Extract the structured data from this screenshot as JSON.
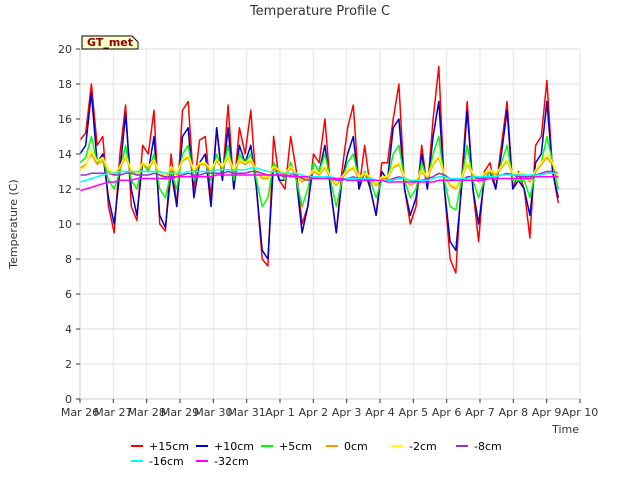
{
  "chart_data": {
    "type": "line",
    "title": "Temperature Profile C",
    "xlabel": "Time",
    "ylabel": "Temperature (C)",
    "xlim": [
      "2024-03-26",
      "2024-04-10"
    ],
    "ylim": [
      0,
      20
    ],
    "yticks": [
      0,
      2,
      4,
      6,
      8,
      10,
      12,
      14,
      16,
      18,
      20
    ],
    "xticks": [
      "Mar 26",
      "Mar 27",
      "Mar 28",
      "Mar 29",
      "Mar 30",
      "Mar 31",
      "Apr 1",
      "Apr 2",
      "Apr 3",
      "Apr 4",
      "Apr 5",
      "Apr 6",
      "Apr 7",
      "Apr 8",
      "Apr 9",
      "Apr 10"
    ],
    "grid": true,
    "legend_placement": "bottom",
    "badge": "GT_met",
    "series": [
      {
        "name": "+15cm",
        "color": "#ff0000",
        "y": [
          14.8,
          15.2,
          18.0,
          14.5,
          15.0,
          11.0,
          9.5,
          14.0,
          16.8,
          11.0,
          10.2,
          14.5,
          14.0,
          16.5,
          10.0,
          9.6,
          14.0,
          11.0,
          16.5,
          17.0,
          12.0,
          14.8,
          15.0,
          11.5,
          15.5,
          12.5,
          16.8,
          12.0,
          15.5,
          14.0,
          16.5,
          12.0,
          8.0,
          7.6,
          15.0,
          12.5,
          12.0,
          15.0,
          13.0,
          10.0,
          11.0,
          14.0,
          13.5,
          16.0,
          12.0,
          9.5,
          13.0,
          15.5,
          16.8,
          12.0,
          14.5,
          12.0,
          10.5,
          13.5,
          13.5,
          16.0,
          18.0,
          12.0,
          10.0,
          11.0,
          14.5,
          12.0,
          16.0,
          19.0,
          12.0,
          8.0,
          7.2,
          12.5,
          17.0,
          12.0,
          9.0,
          13.0,
          13.5,
          12.0,
          14.5,
          17.0,
          12.0,
          13.0,
          12.0,
          9.2,
          14.5,
          15.0,
          18.2,
          13.0,
          11.2
        ]
      },
      {
        "name": "+10cm",
        "color": "#0000cc",
        "y": [
          14.0,
          14.5,
          17.5,
          13.5,
          14.0,
          11.5,
          10.0,
          13.0,
          16.3,
          12.0,
          10.5,
          13.5,
          13.0,
          15.0,
          10.5,
          9.8,
          13.0,
          11.0,
          15.0,
          15.5,
          11.5,
          13.5,
          14.0,
          11.0,
          15.5,
          12.5,
          15.5,
          12.0,
          14.5,
          13.5,
          14.5,
          12.0,
          8.5,
          8.0,
          13.5,
          12.5,
          12.5,
          13.5,
          12.5,
          9.5,
          11.0,
          13.5,
          13.0,
          14.5,
          12.0,
          9.5,
          12.5,
          14.0,
          15.0,
          12.0,
          13.0,
          12.0,
          10.5,
          13.0,
          12.5,
          15.5,
          16.0,
          12.0,
          10.5,
          11.5,
          14.0,
          12.0,
          15.0,
          17.0,
          12.0,
          9.0,
          8.5,
          12.0,
          16.5,
          12.0,
          10.0,
          12.5,
          13.0,
          12.0,
          14.0,
          16.5,
          12.0,
          12.5,
          12.0,
          10.5,
          13.5,
          14.0,
          17.0,
          13.0,
          11.5
        ]
      },
      {
        "name": "+5cm",
        "color": "#00ff00",
        "y": [
          13.5,
          13.8,
          15.0,
          13.5,
          13.8,
          12.5,
          12.0,
          13.0,
          14.5,
          12.5,
          12.0,
          13.5,
          13.0,
          14.0,
          12.0,
          11.5,
          13.0,
          12.0,
          14.0,
          14.5,
          12.5,
          13.5,
          13.5,
          12.5,
          14.0,
          13.0,
          14.5,
          12.5,
          14.0,
          13.5,
          14.0,
          12.5,
          11.0,
          11.5,
          13.5,
          13.0,
          12.5,
          13.5,
          12.5,
          11.0,
          12.0,
          13.5,
          13.0,
          14.0,
          12.5,
          11.0,
          12.5,
          13.5,
          14.0,
          12.5,
          13.0,
          12.5,
          11.5,
          12.5,
          12.5,
          14.0,
          14.5,
          12.5,
          11.5,
          12.0,
          13.5,
          12.5,
          14.0,
          15.0,
          12.5,
          11.0,
          10.8,
          12.5,
          14.5,
          12.5,
          11.5,
          12.5,
          13.0,
          12.5,
          13.5,
          14.5,
          12.5,
          12.5,
          12.5,
          11.5,
          13.0,
          13.5,
          15.0,
          13.5,
          12.0
        ]
      },
      {
        "name": "0cm",
        "color": "#ff9900",
        "y": [
          13.2,
          13.4,
          14.0,
          13.4,
          13.6,
          13.0,
          12.8,
          13.2,
          13.8,
          13.0,
          12.8,
          13.4,
          13.2,
          13.6,
          12.8,
          12.6,
          13.2,
          12.8,
          13.6,
          13.8,
          13.0,
          13.4,
          13.4,
          13.0,
          13.6,
          13.2,
          13.8,
          13.0,
          13.6,
          13.4,
          13.6,
          13.0,
          12.6,
          12.6,
          13.2,
          13.0,
          12.8,
          13.2,
          12.8,
          12.4,
          12.6,
          13.0,
          12.8,
          13.2,
          12.6,
          12.2,
          12.6,
          13.0,
          13.2,
          12.6,
          12.8,
          12.6,
          12.2,
          12.6,
          12.6,
          13.2,
          13.4,
          12.6,
          12.2,
          12.4,
          13.0,
          12.6,
          13.4,
          13.8,
          12.8,
          12.2,
          12.0,
          12.6,
          13.4,
          12.8,
          12.4,
          12.8,
          13.0,
          12.8,
          13.2,
          13.6,
          12.8,
          12.8,
          12.8,
          12.4,
          13.0,
          13.4,
          13.8,
          13.4,
          12.6
        ]
      },
      {
        "name": "-2cm",
        "color": "#ffff00",
        "y": [
          13.1,
          13.3,
          14.2,
          13.6,
          13.8,
          13.1,
          12.9,
          13.3,
          13.9,
          13.1,
          12.9,
          13.5,
          13.3,
          13.7,
          12.9,
          12.7,
          13.3,
          12.9,
          13.7,
          13.9,
          13.1,
          13.5,
          13.5,
          13.1,
          13.7,
          13.3,
          13.9,
          13.1,
          13.7,
          13.5,
          13.7,
          13.1,
          12.7,
          12.7,
          13.3,
          13.1,
          12.9,
          13.3,
          12.9,
          12.5,
          12.7,
          13.1,
          12.9,
          13.3,
          12.7,
          12.3,
          12.7,
          13.1,
          13.3,
          12.7,
          12.9,
          12.7,
          12.3,
          12.7,
          12.7,
          13.3,
          13.5,
          12.7,
          12.3,
          12.5,
          13.1,
          12.7,
          13.5,
          13.9,
          12.9,
          12.3,
          12.1,
          12.7,
          13.5,
          12.9,
          12.5,
          12.9,
          13.1,
          12.9,
          13.3,
          13.7,
          12.9,
          12.9,
          12.9,
          12.5,
          13.1,
          13.5,
          14.0,
          13.5,
          12.7
        ]
      },
      {
        "name": "-8cm",
        "color": "#9933cc",
        "y": [
          12.8,
          12.8,
          12.9,
          12.9,
          12.9,
          12.9,
          12.8,
          12.8,
          12.9,
          12.9,
          12.8,
          12.8,
          12.8,
          12.9,
          12.8,
          12.7,
          12.7,
          12.7,
          12.8,
          12.9,
          12.8,
          12.8,
          12.9,
          12.9,
          12.9,
          12.9,
          13.0,
          12.9,
          12.9,
          12.9,
          13.0,
          13.0,
          12.9,
          12.8,
          12.8,
          12.8,
          12.7,
          12.8,
          12.8,
          12.6,
          12.5,
          12.6,
          12.7,
          12.7,
          12.6,
          12.5,
          12.5,
          12.6,
          12.7,
          12.6,
          12.6,
          12.6,
          12.5,
          12.5,
          12.5,
          12.6,
          12.7,
          12.6,
          12.5,
          12.4,
          12.5,
          12.6,
          12.7,
          12.9,
          12.8,
          12.6,
          12.5,
          12.5,
          12.7,
          12.7,
          12.6,
          12.6,
          12.7,
          12.7,
          12.8,
          12.9,
          12.8,
          12.7,
          12.7,
          12.7,
          12.8,
          12.9,
          13.0,
          13.0,
          12.9
        ]
      },
      {
        "name": "-16cm",
        "color": "#00ffff",
        "y": [
          12.4,
          12.5,
          12.6,
          12.7,
          12.8,
          12.9,
          12.9,
          13.0,
          13.0,
          13.0,
          13.0,
          13.0,
          13.0,
          13.0,
          13.0,
          12.9,
          12.9,
          12.9,
          12.9,
          13.0,
          13.0,
          13.0,
          13.0,
          13.0,
          13.1,
          13.1,
          13.1,
          13.1,
          13.1,
          13.1,
          13.2,
          13.2,
          13.1,
          13.0,
          13.0,
          12.9,
          12.9,
          12.9,
          12.9,
          12.8,
          12.7,
          12.7,
          12.7,
          12.7,
          12.7,
          12.6,
          12.6,
          12.6,
          12.6,
          12.6,
          12.6,
          12.6,
          12.5,
          12.5,
          12.5,
          12.5,
          12.6,
          12.6,
          12.5,
          12.5,
          12.5,
          12.5,
          12.6,
          12.7,
          12.7,
          12.6,
          12.6,
          12.6,
          12.6,
          12.7,
          12.7,
          12.7,
          12.7,
          12.7,
          12.8,
          12.8,
          12.8,
          12.8,
          12.8,
          12.8,
          12.8,
          12.8,
          12.9,
          12.9,
          12.9
        ]
      },
      {
        "name": "-32cm",
        "color": "#ff00ff",
        "y": [
          11.9,
          12.0,
          12.1,
          12.2,
          12.3,
          12.4,
          12.4,
          12.5,
          12.5,
          12.5,
          12.6,
          12.6,
          12.6,
          12.6,
          12.6,
          12.6,
          12.6,
          12.7,
          12.7,
          12.7,
          12.7,
          12.7,
          12.7,
          12.7,
          12.8,
          12.8,
          12.8,
          12.8,
          12.8,
          12.8,
          12.8,
          12.8,
          12.8,
          12.8,
          12.8,
          12.8,
          12.8,
          12.7,
          12.7,
          12.7,
          12.7,
          12.6,
          12.6,
          12.6,
          12.6,
          12.6,
          12.6,
          12.5,
          12.5,
          12.5,
          12.5,
          12.5,
          12.5,
          12.5,
          12.4,
          12.4,
          12.4,
          12.4,
          12.4,
          12.4,
          12.4,
          12.4,
          12.4,
          12.5,
          12.5,
          12.5,
          12.5,
          12.5,
          12.5,
          12.5,
          12.5,
          12.5,
          12.6,
          12.6,
          12.6,
          12.6,
          12.6,
          12.6,
          12.6,
          12.6,
          12.7,
          12.7,
          12.7,
          12.7,
          12.7
        ]
      }
    ]
  }
}
